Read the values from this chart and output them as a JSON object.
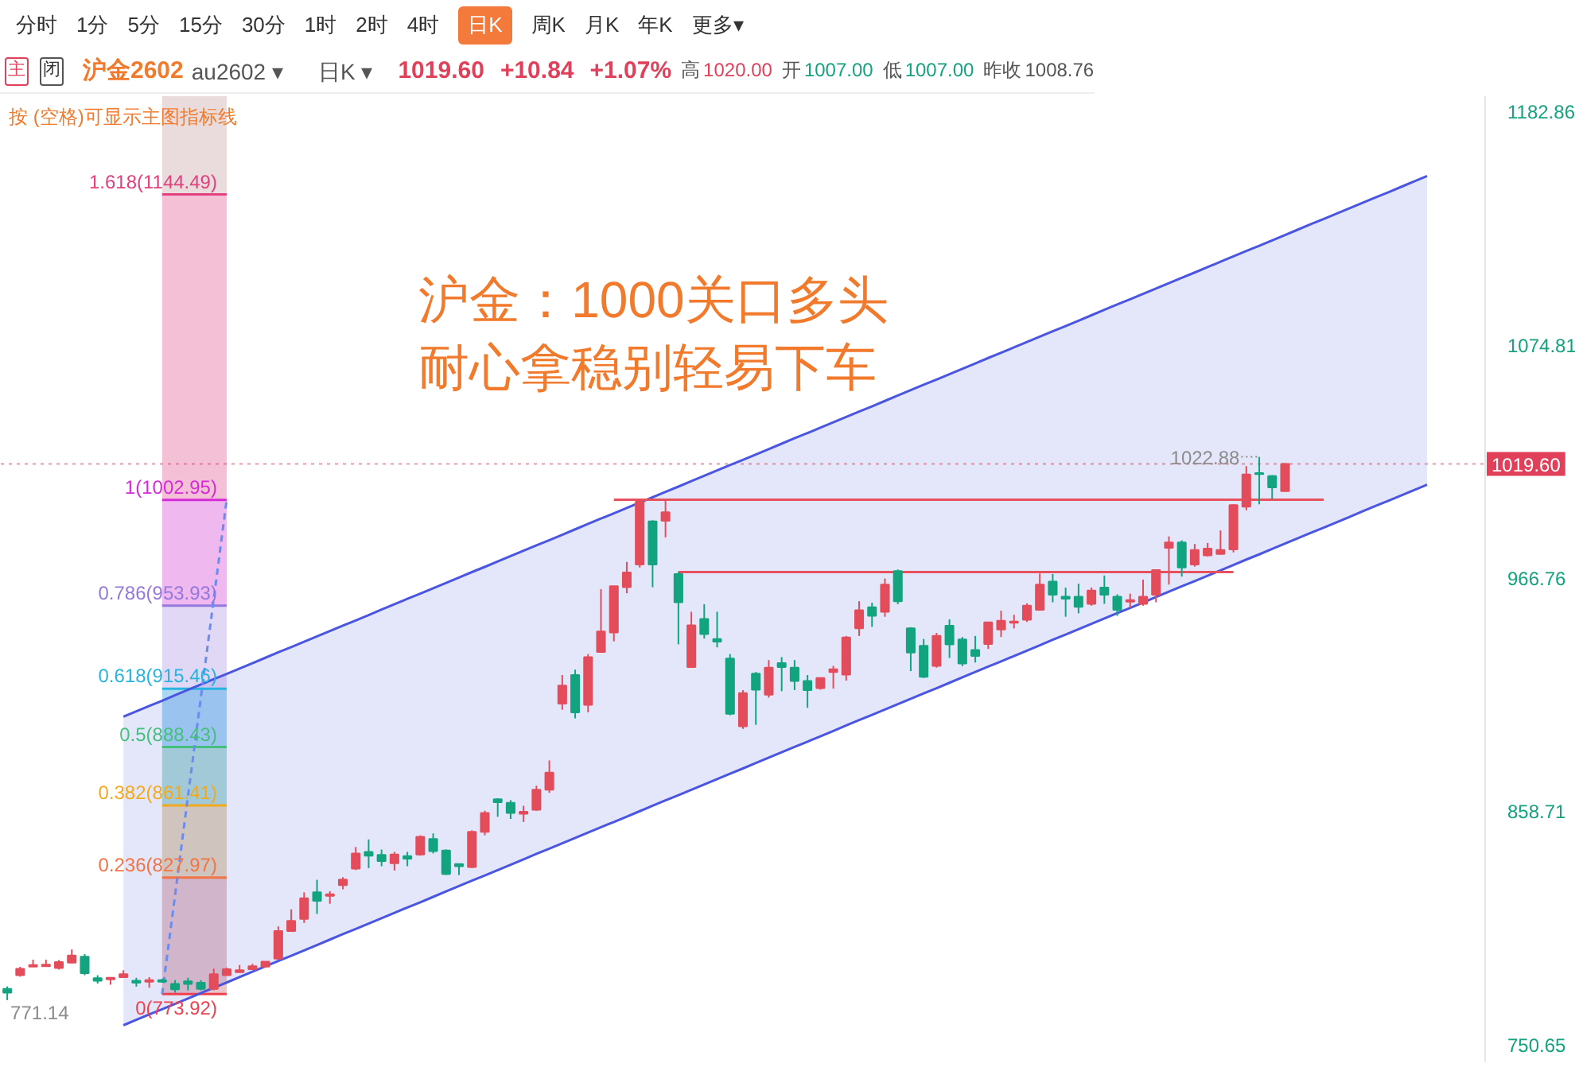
{
  "chart_data": {
    "type": "candlestick",
    "title": "沪金：1000关口多头",
    "subtitle": "耐心拿稳别轻易下车",
    "annotations": [
      "分时",
      "1分",
      "5分",
      "15分",
      "30分",
      "1时",
      "2时",
      "4时",
      "日K",
      "周K",
      "月K",
      "年K",
      "更多▾",
      "主",
      "闭",
      "沪金2602",
      "au2602 ▾",
      "日K ▾",
      "1019.60",
      "+10.84",
      "+1.07%",
      "高",
      "1020.00",
      "开",
      "1007.00",
      "低",
      "1007.00",
      "昨收",
      "1008.76",
      "按 (空格)可显示主图指标线",
      "771.14",
      {
        "text": "1022.88",
        "y": 1022.88
      }
    ],
    "categories": [
      null,
      null,
      null,
      null,
      null,
      null,
      null,
      null,
      null,
      null,
      null,
      null,
      null,
      null,
      null,
      null,
      null,
      null,
      null,
      null,
      null,
      null,
      null,
      null,
      null,
      null,
      null,
      null,
      null,
      null,
      null,
      null,
      null,
      null,
      null,
      null,
      null,
      null,
      null,
      null,
      null,
      null,
      null,
      null,
      null,
      null,
      null,
      null,
      null,
      null,
      null,
      null,
      null,
      null,
      null,
      null,
      null,
      null,
      null,
      null,
      null,
      null,
      null,
      null,
      null,
      null,
      null,
      null,
      null,
      null,
      null,
      null,
      null,
      null,
      null,
      null,
      null,
      null,
      null,
      null,
      null,
      null,
      null,
      null,
      null,
      null,
      null,
      null,
      null,
      null,
      null,
      null,
      null,
      null,
      null,
      null,
      null,
      null,
      null,
      null,
      null,
      null,
      null,
      null,
      null,
      null,
      null,
      null,
      null,
      null,
      null,
      null,
      null,
      null,
      null
    ],
    "ohlc": [
      [
        776.4,
        777.5,
        771.14,
        774.6
      ],
      [
        782.7,
        786.6,
        782.0,
        785.7
      ],
      [
        786.7,
        789.9,
        786.7,
        787.4
      ],
      [
        786.9,
        789.9,
        786.9,
        787.6
      ],
      [
        786.0,
        789.7,
        785.3,
        788.8
      ],
      [
        788.5,
        794.6,
        788.1,
        791.8
      ],
      [
        791.3,
        792.5,
        782.7,
        783.6
      ],
      [
        781.3,
        782.7,
        778.8,
        780.1
      ],
      [
        780.8,
        781.5,
        778.3,
        781.5
      ],
      [
        781.8,
        785.0,
        781.5,
        783.2
      ],
      [
        780.1,
        781.5,
        777.4,
        779.2
      ],
      [
        779.7,
        781.8,
        776.9,
        780.4
      ],
      [
        780.4,
        781.1,
        779.2,
        779.7
      ],
      [
        778.7,
        780.4,
        774.6,
        776.2
      ],
      [
        779.9,
        781.5,
        775.7,
        778.7
      ],
      [
        779.2,
        780.4,
        775.7,
        776.4
      ],
      [
        776.4,
        785.7,
        775.7,
        783.2
      ],
      [
        782.7,
        786.2,
        782.5,
        785.5
      ],
      [
        784.1,
        787.4,
        784.1,
        785.0
      ],
      [
        785.5,
        788.0,
        785.3,
        786.9
      ],
      [
        786.7,
        789.0,
        786.2,
        789.0
      ],
      [
        790.4,
        805.3,
        789.9,
        803.2
      ],
      [
        803.2,
        813.2,
        802.8,
        807.9
      ],
      [
        808.8,
        821.1,
        806.9,
        818.4
      ],
      [
        821.1,
        826.9,
        811.1,
        817.2
      ],
      [
        819.5,
        821.6,
        815.8,
        820.2
      ],
      [
        824.4,
        828.1,
        822.5,
        827.0
      ],
      [
        832.1,
        842.1,
        831.4,
        839.1
      ],
      [
        839.8,
        845.6,
        832.3,
        838.1
      ],
      [
        838.4,
        840.9,
        833.2,
        835.6
      ],
      [
        834.6,
        839.8,
        831.2,
        838.6
      ],
      [
        837.9,
        839.8,
        833.2,
        836.7
      ],
      [
        838.6,
        847.5,
        838.1,
        846.8
      ],
      [
        845.8,
        848.4,
        839.1,
        840.2
      ],
      [
        840.5,
        841.0,
        829.1,
        829.6
      ],
      [
        834.2,
        834.2,
        829.1,
        833.2
      ],
      [
        832.8,
        849.8,
        832.3,
        849.1
      ],
      [
        849.1,
        858.9,
        847.5,
        857.9
      ],
      [
        864.2,
        864.7,
        856.1,
        862.8
      ],
      [
        862.6,
        863.8,
        855.1,
        857.9
      ],
      [
        857.5,
        861.2,
        853.7,
        858.4
      ],
      [
        859.3,
        870.5,
        858.9,
        868.6
      ],
      [
        868.6,
        882.2,
        867.2,
        876.6
      ],
      [
        908.5,
        921.8,
        905.7,
        916.9
      ],
      [
        921.8,
        924.3,
        901.7,
        904.5
      ],
      [
        908.0,
        931.5,
        904.5,
        930.1
      ],
      [
        932.5,
        961.6,
        932.5,
        942.0
      ],
      [
        941.5,
        963.0,
        937.4,
        963.0
      ],
      [
        962.5,
        974.2,
        959.7,
        969.3
      ],
      [
        973.0,
        1002.5,
        971.6,
        1002.1
      ],
      [
        993.0,
        993.5,
        962.5,
        973.0
      ],
      [
        993.3,
        1002.95,
        985.6,
        997.2
      ],
      [
        968.6,
        969.5,
        936.0,
        955.5
      ],
      [
        925.5,
        951.1,
        925.5,
        944.8
      ],
      [
        947.8,
        954.6,
        938.7,
        940.8
      ],
      [
        938.5,
        951.1,
        934.6,
        937.3
      ],
      [
        929.4,
        931.5,
        903.1,
        903.8
      ],
      [
        898.0,
        914.8,
        896.8,
        913.4
      ],
      [
        922.4,
        923.2,
        898.7,
        915.0
      ],
      [
        912.7,
        928.7,
        911.3,
        925.2
      ],
      [
        927.3,
        930.1,
        914.3,
        925.5
      ],
      [
        925.2,
        928.7,
        914.8,
        919.0
      ],
      [
        919.0,
        921.8,
        906.6,
        914.8
      ],
      [
        915.7,
        920.6,
        915.0,
        920.4
      ],
      [
        923.2,
        926.0,
        915.5,
        924.5
      ],
      [
        922.0,
        939.9,
        919.2,
        939.2
      ],
      [
        943.4,
        956.0,
        939.9,
        951.8
      ],
      [
        953.2,
        955.3,
        944.1,
        949.2
      ],
      [
        951.1,
        966.5,
        948.8,
        963.7
      ],
      [
        970.0,
        970.7,
        954.6,
        956.0
      ],
      [
        943.4,
        943.9,
        923.6,
        932.2
      ],
      [
        935.3,
        938.5,
        920.4,
        921.0
      ],
      [
        926.0,
        941.3,
        925.2,
        939.9
      ],
      [
        944.6,
        947.6,
        929.7,
        936.0
      ],
      [
        938.3,
        939.4,
        925.9,
        927.1
      ],
      [
        933.4,
        939.9,
        927.6,
        930.6
      ],
      [
        936.2,
        946.5,
        933.9,
        946.2
      ],
      [
        942.9,
        951.6,
        939.4,
        946.9
      ],
      [
        946.0,
        949.7,
        943.4,
        946.6
      ],
      [
        947.4,
        955.0,
        946.4,
        953.9
      ],
      [
        952.0,
        968.8,
        951.6,
        963.7
      ],
      [
        965.1,
        968.6,
        955.5,
        959.0
      ],
      [
        958.1,
        962.3,
        948.8,
        957.2
      ],
      [
        958.1,
        964.1,
        950.4,
        953.4
      ],
      [
        954.8,
        962.3,
        953.9,
        960.9
      ],
      [
        962.3,
        967.9,
        954.8,
        959.0
      ],
      [
        958.1,
        959.2,
        949.2,
        952.0
      ],
      [
        955.8,
        959.5,
        952.9,
        956.5
      ],
      [
        954.8,
        966.0,
        953.9,
        958.1
      ],
      [
        959.0,
        970.7,
        955.5,
        970.4
      ],
      [
        980.7,
        986.0,
        963.7,
        983.2
      ],
      [
        983.2,
        984.2,
        967.4,
        971.6
      ],
      [
        973.0,
        982.5,
        972.0,
        979.7
      ],
      [
        977.2,
        983.0,
        976.7,
        980.4
      ],
      [
        977.9,
        988.8,
        977.6,
        979.7
      ],
      [
        980.0,
        1000.9,
        978.6,
        1000.5
      ],
      [
        999.8,
        1018.6,
        998.1,
        1014.7
      ],
      [
        1015.4,
        1022.88,
        1000.9,
        1014.9
      ],
      [
        1014.0,
        1014.4,
        1003.3,
        1008.76
      ],
      [
        1007.0,
        1020.0,
        1007.0,
        1019.6
      ],
      null,
      null,
      null,
      null,
      null,
      null,
      null,
      null,
      null,
      null,
      null,
      null,
      null,
      null,
      null
    ],
    "colors": [
      "#12a47f",
      "#e34c5a",
      "#e34c5a",
      "#e34c5a",
      "#e34c5a",
      "#e34c5a",
      "#12a47f",
      "#12a47f",
      "#e34c5a",
      "#e34c5a",
      "#12a47f",
      "#e34c5a",
      "#12a47f",
      "#12a47f",
      "#12a47f",
      "#12a47f",
      "#e34c5a",
      "#e34c5a",
      "#e34c5a",
      "#e34c5a",
      "#e34c5a",
      "#e34c5a",
      "#e34c5a",
      "#e34c5a",
      "#12a47f",
      "#e34c5a",
      "#e34c5a",
      "#e34c5a",
      "#12a47f",
      "#12a47f",
      "#e34c5a",
      "#12a47f",
      "#e34c5a",
      "#12a47f",
      "#12a47f",
      "#12a47f",
      "#e34c5a",
      "#e34c5a",
      "#12a47f",
      "#12a47f",
      "#e34c5a",
      "#e34c5a",
      "#e34c5a",
      "#e34c5a",
      "#12a47f",
      "#e34c5a",
      "#e34c5a",
      "#e34c5a",
      "#e34c5a",
      "#e34c5a",
      "#12a47f",
      "#e34c5a",
      "#12a47f",
      "#e34c5a",
      "#12a47f",
      "#12a47f",
      "#12a47f",
      "#e34c5a",
      "#12a47f",
      "#e34c5a",
      "#12a47f",
      "#12a47f",
      "#12a47f",
      "#e34c5a",
      "#e34c5a",
      "#e34c5a",
      "#e34c5a",
      "#12a47f",
      "#e34c5a",
      "#12a47f",
      "#12a47f",
      "#12a47f",
      "#e34c5a",
      "#12a47f",
      "#12a47f",
      "#12a47f",
      "#e34c5a",
      "#e34c5a",
      "#e34c5a",
      "#e34c5a",
      "#e34c5a",
      "#12a47f",
      "#12a47f",
      "#12a47f",
      "#e34c5a",
      "#12a47f",
      "#12a47f",
      "#e34c5a",
      "#e34c5a",
      "#e34c5a",
      "#e34c5a",
      "#12a47f",
      "#e34c5a",
      "#e34c5a",
      "#e34c5a",
      "#e34c5a",
      "#e34c5a",
      "#12a47f",
      "#12a47f",
      "#e34c5a",
      null,
      null,
      null,
      null,
      null,
      null,
      null,
      null,
      null,
      null,
      null,
      null,
      null,
      null,
      null
    ],
    "series": [
      {
        "type": "line",
        "color": "#4a55e0",
        "values": [
          null,
          null,
          null,
          null,
          null,
          null,
          null,
          null,
          null,
          902.5,
          905.0,
          907.5,
          909.9,
          912.4,
          914.9,
          917.4,
          919.9,
          922.3,
          924.8,
          927.3,
          929.8,
          932.3,
          934.7,
          937.2,
          939.7,
          942.2,
          944.7,
          947.1,
          949.6,
          952.1,
          954.6,
          957.1,
          959.5,
          962.0,
          964.5,
          967.0,
          969.5,
          971.9,
          974.4,
          976.9,
          979.4,
          981.9,
          984.3,
          986.8,
          989.3,
          991.8,
          994.3,
          996.7,
          999.2,
          1001.7,
          1004.2,
          1006.7,
          1009.1,
          1011.6,
          1014.1,
          1016.6,
          1019.1,
          1021.5,
          1024.0,
          1026.5,
          1029.0,
          1031.5,
          1033.9,
          1036.4,
          1038.9,
          1041.4,
          1043.9,
          1046.3,
          1048.8,
          1051.3,
          1053.8,
          1056.3,
          1058.7,
          1061.2,
          1063.7,
          1066.2,
          1068.7,
          1071.1,
          1073.6,
          1076.1,
          1078.6,
          1081.1,
          1083.5,
          1086.0,
          1088.5,
          1091.0,
          1093.5,
          1095.9,
          1098.4,
          1100.9,
          1103.4,
          1105.9,
          1108.3,
          1110.8,
          1113.3,
          1115.8,
          1118.3,
          1120.7,
          1123.2,
          1125.7,
          1128.2,
          1130.7,
          1133.1,
          1135.6,
          1138.1,
          1140.6,
          1143.1,
          1145.5,
          1148.0,
          1150.5,
          1153.0,
          null,
          null,
          null,
          null
        ],
        "lower": [
          null,
          null,
          null,
          null,
          null,
          null,
          null,
          null,
          null,
          759.5,
          762.0,
          764.5,
          766.9,
          769.4,
          771.9,
          774.4,
          776.9,
          779.3,
          781.8,
          784.3,
          786.8,
          789.3,
          791.7,
          794.2,
          796.7,
          799.2,
          801.7,
          804.1,
          806.6,
          809.1,
          811.6,
          814.1,
          816.5,
          819.0,
          821.5,
          824.0,
          826.5,
          828.9,
          831.4,
          833.9,
          836.4,
          838.9,
          841.3,
          843.8,
          846.3,
          848.8,
          851.3,
          853.7,
          856.2,
          858.7,
          861.2,
          863.7,
          866.1,
          868.6,
          871.1,
          873.6,
          876.1,
          878.5,
          881.0,
          883.5,
          886.0,
          888.5,
          890.9,
          893.4,
          895.9,
          898.4,
          900.9,
          903.3,
          905.8,
          908.3,
          910.8,
          913.3,
          915.7,
          918.2,
          920.7,
          923.2,
          925.7,
          928.1,
          930.6,
          933.1,
          935.6,
          938.1,
          940.5,
          943.0,
          945.5,
          948.0,
          950.5,
          952.9,
          955.4,
          957.9,
          960.4,
          962.9,
          965.3,
          967.8,
          970.3,
          972.8,
          975.3,
          977.7,
          980.2,
          982.7,
          985.2,
          987.7,
          990.1,
          992.6,
          995.1,
          997.6,
          1000.1,
          1002.5,
          1005.0,
          1007.5,
          1010.0,
          null,
          null,
          null,
          null
        ],
        "upper": [
          null,
          null,
          null,
          null,
          null,
          null,
          null,
          null,
          null,
          902.5,
          905.0,
          907.5,
          909.9,
          912.4,
          914.9,
          917.4,
          919.9,
          922.3,
          924.8,
          927.3,
          929.8,
          932.3,
          934.7,
          937.2,
          939.7,
          942.2,
          944.7,
          947.1,
          949.6,
          952.1,
          954.6,
          957.1,
          959.5,
          962.0,
          964.5,
          967.0,
          969.5,
          971.9,
          974.4,
          976.9,
          979.4,
          981.9,
          984.3,
          986.8,
          989.3,
          991.8,
          994.3,
          996.7,
          999.2,
          1001.7,
          1004.2,
          1006.7,
          1009.1,
          1011.6,
          1014.1,
          1016.6,
          1019.1,
          1021.5,
          1024.0,
          1026.5,
          1029.0,
          1031.5,
          1033.9,
          1036.4,
          1038.9,
          1041.4,
          1043.9,
          1046.3,
          1048.8,
          1051.3,
          1053.8,
          1056.3,
          1058.7,
          1061.2,
          1063.7,
          1066.2,
          1068.7,
          1071.1,
          1073.6,
          1076.1,
          1078.6,
          1081.1,
          1083.5,
          1086.0,
          1088.5,
          1091.0,
          1093.5,
          1095.9,
          1098.4,
          1100.9,
          1103.4,
          1105.9,
          1108.3,
          1110.8,
          1113.3,
          1115.8,
          1118.3,
          1120.7,
          1123.2,
          1125.7,
          1128.2,
          1130.7,
          1133.1,
          1135.6,
          1138.1,
          1140.6,
          1143.1,
          1145.5,
          1148.0,
          1150.5,
          1153.0,
          null,
          null,
          null,
          null
        ]
      },
      {
        "type": "line",
        "color": "#4a55e0",
        "values": [
          null,
          null,
          null,
          null,
          null,
          null,
          null,
          null,
          null,
          759.5,
          762.0,
          764.5,
          766.9,
          769.4,
          771.9,
          774.4,
          776.9,
          779.3,
          781.8,
          784.3,
          786.8,
          789.3,
          791.7,
          794.2,
          796.7,
          799.2,
          801.7,
          804.1,
          806.6,
          809.1,
          811.6,
          814.1,
          816.5,
          819.0,
          821.5,
          824.0,
          826.5,
          828.9,
          831.4,
          833.9,
          836.4,
          838.9,
          841.3,
          843.8,
          846.3,
          848.8,
          851.3,
          853.7,
          856.2,
          858.7,
          861.2,
          863.7,
          866.1,
          868.6,
          871.1,
          873.6,
          876.1,
          878.5,
          881.0,
          883.5,
          886.0,
          888.5,
          890.9,
          893.4,
          895.9,
          898.4,
          900.9,
          903.3,
          905.8,
          908.3,
          910.8,
          913.3,
          915.7,
          918.2,
          920.7,
          923.2,
          925.7,
          928.1,
          930.6,
          933.1,
          935.6,
          938.1,
          940.5,
          943.0,
          945.5,
          948.0,
          950.5,
          952.9,
          955.4,
          957.9,
          960.4,
          962.9,
          965.3,
          967.8,
          970.3,
          972.8,
          975.3,
          977.7,
          980.2,
          982.7,
          985.2,
          987.7,
          990.1,
          992.6,
          995.1,
          997.6,
          1000.1,
          1002.5,
          1005.0,
          1007.5,
          1010.0,
          null,
          null,
          null,
          null
        ]
      },
      {
        "type": "line",
        "color": "#e8505e",
        "values": [
          null,
          null,
          null,
          null,
          null,
          null,
          null,
          null,
          null,
          null,
          null,
          null,
          null,
          null,
          null,
          null,
          null,
          null,
          null,
          null,
          null,
          null,
          null,
          null,
          null,
          null,
          null,
          null,
          null,
          null,
          null,
          null,
          null,
          null,
          null,
          null,
          null,
          null,
          null,
          null,
          null,
          null,
          null,
          null,
          null,
          null,
          null,
          1003,
          1003,
          1003,
          1003,
          1003,
          1003,
          1003,
          1003,
          1003,
          1003,
          1003,
          1003,
          1003,
          1003,
          1003,
          1003,
          1003,
          1003,
          1003,
          1003,
          1003,
          1003,
          1003,
          1003,
          1003,
          1003,
          1003,
          1003,
          1003,
          1003,
          1003,
          1003,
          1003,
          1003,
          1003,
          1003,
          1003,
          1003,
          1003,
          1003,
          1003,
          1003,
          1003,
          1003,
          1003,
          1003,
          1003,
          1003,
          1003,
          1003,
          1003,
          1003,
          1003,
          1003,
          1003,
          1003,
          null,
          null,
          null,
          null,
          null,
          null,
          null,
          null,
          null,
          null,
          null,
          null
        ]
      },
      {
        "type": "line",
        "color": "#e8505e",
        "values": [
          null,
          null,
          null,
          null,
          null,
          null,
          null,
          null,
          null,
          null,
          null,
          null,
          null,
          null,
          null,
          null,
          null,
          null,
          null,
          null,
          null,
          null,
          null,
          null,
          null,
          null,
          null,
          null,
          null,
          null,
          null,
          null,
          null,
          null,
          null,
          null,
          null,
          null,
          null,
          null,
          null,
          null,
          null,
          null,
          null,
          null,
          null,
          null,
          null,
          null,
          null,
          null,
          969.5,
          969.5,
          969.5,
          969.5,
          969.5,
          969.5,
          969.5,
          969.5,
          969.5,
          969.5,
          969.5,
          969.5,
          969.5,
          969.5,
          969.5,
          969.5,
          969.5,
          969.5,
          969.5,
          969.5,
          969.5,
          969.5,
          969.5,
          969.5,
          969.5,
          969.5,
          969.5,
          969.5,
          969.5,
          969.5,
          969.5,
          969.5,
          969.5,
          969.5,
          969.5,
          969.5,
          969.5,
          969.5,
          969.5,
          969.5,
          969.5,
          969.5,
          969.5,
          969.5,
          null,
          null,
          null,
          null,
          null,
          null,
          null,
          null,
          null,
          null,
          null,
          null,
          null,
          null,
          null,
          null,
          null,
          null,
          null
        ]
      },
      {
        "type": "line",
        "color": "#6a8cf0",
        "line_style": "dashed",
        "values": [
          null,
          null,
          null,
          null,
          null,
          null,
          null,
          null,
          null,
          null,
          null,
          null,
          773.9,
          819.7,
          865.5,
          911.3,
          957.1,
          1003.0,
          null,
          null,
          null,
          null,
          null,
          null,
          null,
          null,
          null,
          null,
          null,
          null,
          null,
          null,
          null,
          null,
          null,
          null,
          null,
          null,
          null,
          null,
          null,
          null,
          null,
          null,
          null,
          null,
          null,
          null,
          null,
          null,
          null,
          null,
          null,
          null,
          null,
          null,
          null,
          null,
          null,
          null,
          null,
          null,
          null,
          null,
          null,
          null,
          null,
          null,
          null,
          null,
          null,
          null,
          null,
          null,
          null,
          null,
          null,
          null,
          null,
          null,
          null,
          null,
          null,
          null,
          null,
          null,
          null,
          null,
          null,
          null,
          null,
          null,
          null,
          null,
          null,
          null,
          null,
          null,
          null,
          null,
          null,
          null,
          null,
          null,
          null,
          null,
          null,
          null,
          null,
          null,
          null,
          null,
          null,
          null,
          null
        ]
      }
    ],
    "ylim": [
      742,
      1190
    ],
    "yticks": [
      750.65,
      858.71,
      966.76,
      1074.81,
      1182.86
    ],
    "tick_labels": "y",
    "ref_lines": [
      {
        "axis": "y",
        "value": 1144.49,
        "label": "1.618(1144.49)",
        "color": "#e2407e"
      },
      {
        "axis": "y",
        "value": 1002.95,
        "label": "1(1002.95)",
        "color": "#d42ad8"
      },
      {
        "axis": "y",
        "value": 953.93,
        "label": "0.786(953.93)",
        "color": "#9478dc"
      },
      {
        "axis": "y",
        "value": 915.46,
        "label": "0.618(915.46)",
        "color": "#28b4e0"
      },
      {
        "axis": "y",
        "value": 888.43,
        "label": "0.5(888.43)",
        "color": "#44c07c"
      },
      {
        "axis": "y",
        "value": 861.41,
        "label": "0.382(861.41)",
        "color": "#f2aa1c"
      },
      {
        "axis": "y",
        "value": 827.97,
        "label": "0.236(827.97)",
        "color": "#f27444"
      },
      {
        "axis": "y",
        "value": 773.92,
        "label": "0(773.92)",
        "color": "#f0404e"
      },
      {
        "axis": "y",
        "value": 1019.6,
        "label": "1019.60",
        "color": "#e0405a",
        "line_style": "dotted"
      }
    ],
    "bands": [
      {
        "axis": "y",
        "from": 1144.49,
        "to": 1190,
        "color": "#eadcdc"
      },
      {
        "axis": "y",
        "from": 1002.95,
        "to": 1144.49,
        "color": "#f4c0d6"
      },
      {
        "axis": "y",
        "from": 953.93,
        "to": 1002.95,
        "color": "#efb8ef"
      },
      {
        "axis": "y",
        "from": 915.46,
        "to": 953.93,
        "color": "#e0d8f4"
      },
      {
        "axis": "y",
        "from": 888.43,
        "to": 915.46,
        "color": "#a8d8f2"
      },
      {
        "axis": "y",
        "from": 861.41,
        "to": 888.43,
        "color": "#b2ddd8"
      },
      {
        "axis": "y",
        "from": 827.97,
        "to": 861.41,
        "color": "#e8d8ba"
      },
      {
        "axis": "y",
        "from": 773.92,
        "to": 827.97,
        "color": "#e8c6c8"
      }
    ]
  }
}
